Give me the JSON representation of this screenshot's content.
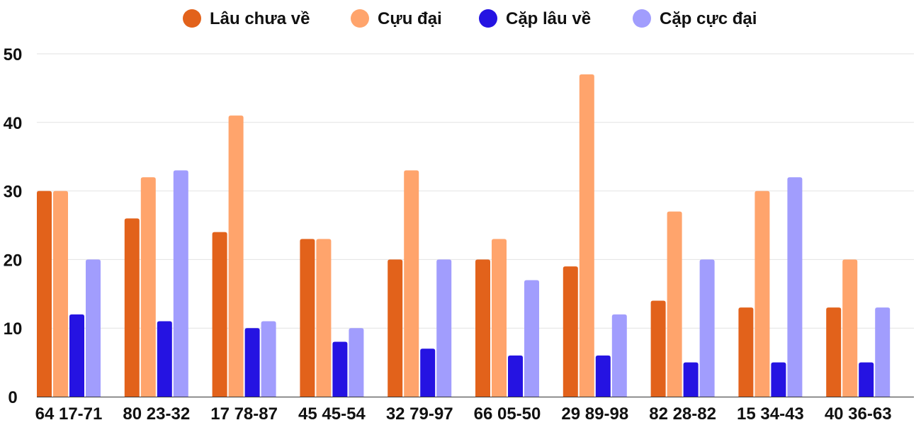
{
  "chart_data": {
    "type": "bar",
    "title": "",
    "xlabel": "",
    "ylabel": "",
    "ylim": [
      0,
      50
    ],
    "yticks": [
      0,
      10,
      20,
      30,
      40,
      50
    ],
    "grid": true,
    "legend_position": "top-center",
    "categories": [
      "64 17-71",
      "80 23-32",
      "17 78-87",
      "45 45-54",
      "32 79-97",
      "66 05-50",
      "29 89-98",
      "82 28-82",
      "15 34-43",
      "40 36-63"
    ],
    "series": [
      {
        "name": "Lâu chưa về",
        "color": "#e2621b",
        "values": [
          30,
          26,
          24,
          23,
          20,
          20,
          19,
          14,
          13,
          13
        ]
      },
      {
        "name": "Cựu đại",
        "color": "#ffa46c",
        "values": [
          30,
          32,
          41,
          23,
          33,
          23,
          47,
          27,
          30,
          20
        ]
      },
      {
        "name": "Cặp lâu về",
        "color": "#2513e2",
        "values": [
          12,
          11,
          10,
          8,
          7,
          6,
          6,
          5,
          5,
          5
        ]
      },
      {
        "name": "Cặp cực đại",
        "color": "#a19dfd",
        "values": [
          20,
          33,
          11,
          10,
          20,
          17,
          12,
          20,
          32,
          13
        ]
      }
    ]
  }
}
